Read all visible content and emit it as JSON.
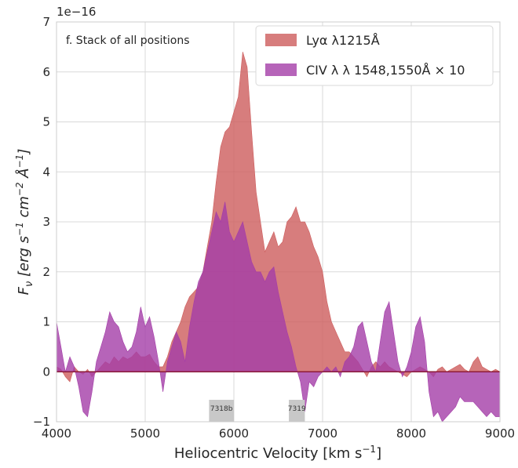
{
  "chart_data": {
    "type": "area",
    "title": "f. Stack of all positions",
    "xlabel": "Heliocentric Velocity [km s$^{-1}$]",
    "xlabel_text": "Heliocentric Velocity [km s",
    "xlabel_exp": "−1",
    "xlabel_close": "]",
    "ylabel_parts": [
      "F",
      "ν",
      " [erg s",
      "−1",
      " cm",
      "−2",
      " Å",
      "−1",
      "]"
    ],
    "offset_text": "1e−16",
    "xlim": [
      4000,
      9000
    ],
    "ylim": [
      -1,
      7
    ],
    "xticks": [
      "4000",
      "5000",
      "6000",
      "7000",
      "8000",
      "9000"
    ],
    "yticks": [
      "−1",
      "0",
      "1",
      "2",
      "3",
      "4",
      "5",
      "6",
      "7"
    ],
    "grid": true,
    "legend_position": "top-right",
    "series": [
      {
        "name": "Lyα λ1215Å",
        "color": "#cd5c5c",
        "x": [
          4000,
          4050,
          4100,
          4150,
          4200,
          4250,
          4300,
          4350,
          4400,
          4450,
          4500,
          4550,
          4600,
          4650,
          4700,
          4750,
          4800,
          4850,
          4900,
          4950,
          5000,
          5050,
          5100,
          5150,
          5200,
          5250,
          5300,
          5350,
          5400,
          5450,
          5500,
          5550,
          5600,
          5650,
          5700,
          5750,
          5800,
          5850,
          5900,
          5950,
          6000,
          6050,
          6100,
          6150,
          6200,
          6250,
          6300,
          6350,
          6400,
          6450,
          6500,
          6550,
          6600,
          6650,
          6700,
          6750,
          6800,
          6850,
          6900,
          6950,
          7000,
          7050,
          7100,
          7150,
          7200,
          7250,
          7300,
          7350,
          7400,
          7450,
          7500,
          7550,
          7600,
          7650,
          7700,
          7750,
          7800,
          7850,
          7900,
          7950,
          8000,
          8050,
          8100,
          8150,
          8200,
          8250,
          8300,
          8350,
          8400,
          8450,
          8500,
          8550,
          8600,
          8650,
          8700,
          8750,
          8800,
          8850,
          8900,
          8950,
          9000
        ],
        "y": [
          0.1,
          0.05,
          -0.1,
          -0.2,
          0.1,
          0.0,
          -0.05,
          0.05,
          -0.1,
          0.0,
          0.1,
          0.2,
          0.15,
          0.3,
          0.2,
          0.3,
          0.25,
          0.3,
          0.4,
          0.3,
          0.3,
          0.35,
          0.2,
          0.1,
          0.1,
          0.3,
          0.6,
          0.8,
          1.0,
          1.3,
          1.5,
          1.6,
          1.7,
          2.0,
          2.5,
          3.0,
          3.8,
          4.5,
          4.8,
          4.9,
          5.2,
          5.5,
          6.4,
          6.1,
          4.8,
          3.6,
          3.0,
          2.4,
          2.6,
          2.8,
          2.5,
          2.6,
          3.0,
          3.1,
          3.3,
          3.0,
          3.0,
          2.8,
          2.5,
          2.3,
          2.0,
          1.4,
          1.0,
          0.8,
          0.6,
          0.4,
          0.4,
          0.3,
          0.2,
          0.05,
          -0.1,
          0.1,
          0.2,
          0.1,
          0.2,
          0.1,
          0.05,
          0.0,
          -0.05,
          -0.1,
          0.0,
          0.05,
          0.1,
          0.05,
          0.0,
          -0.1,
          0.05,
          0.1,
          0.0,
          0.05,
          0.1,
          0.15,
          0.05,
          0.0,
          0.2,
          0.3,
          0.1,
          0.05,
          0.0,
          0.05,
          0.0
        ]
      },
      {
        "name": "CIV λ λ 1548,1550Å  × 10",
        "color": "#a43da8",
        "x": [
          4000,
          4050,
          4100,
          4150,
          4200,
          4250,
          4300,
          4350,
          4400,
          4450,
          4500,
          4550,
          4600,
          4650,
          4700,
          4750,
          4800,
          4850,
          4900,
          4950,
          5000,
          5050,
          5100,
          5150,
          5200,
          5250,
          5300,
          5350,
          5400,
          5450,
          5500,
          5550,
          5600,
          5650,
          5700,
          5750,
          5800,
          5850,
          5900,
          5950,
          6000,
          6050,
          6100,
          6150,
          6200,
          6250,
          6300,
          6350,
          6400,
          6450,
          6500,
          6550,
          6600,
          6650,
          6700,
          6750,
          6800,
          6850,
          6900,
          6950,
          7000,
          7050,
          7100,
          7150,
          7200,
          7250,
          7300,
          7350,
          7400,
          7450,
          7500,
          7550,
          7600,
          7650,
          7700,
          7750,
          7800,
          7850,
          7900,
          7950,
          8000,
          8050,
          8100,
          8150,
          8200,
          8250,
          8300,
          8350,
          8400,
          8450,
          8500,
          8550,
          8600,
          8650,
          8700,
          8750,
          8800,
          8850,
          8900,
          8950,
          9000
        ],
        "y": [
          1.0,
          0.5,
          0.0,
          0.3,
          0.1,
          -0.3,
          -0.8,
          -0.9,
          -0.4,
          0.2,
          0.5,
          0.8,
          1.2,
          1.0,
          0.9,
          0.6,
          0.4,
          0.5,
          0.8,
          1.3,
          0.9,
          1.1,
          0.7,
          0.2,
          -0.4,
          0.2,
          0.5,
          0.8,
          0.6,
          0.2,
          0.9,
          1.4,
          1.8,
          2.0,
          2.4,
          2.8,
          3.2,
          3.0,
          3.4,
          2.8,
          2.6,
          2.8,
          3.0,
          2.6,
          2.2,
          2.0,
          2.0,
          1.8,
          2.0,
          2.1,
          1.6,
          1.2,
          0.8,
          0.5,
          0.1,
          -0.2,
          -0.8,
          -0.2,
          -0.3,
          -0.1,
          0.0,
          0.1,
          0.0,
          0.1,
          -0.1,
          0.2,
          0.3,
          0.5,
          0.9,
          1.0,
          0.6,
          0.2,
          0.0,
          0.6,
          1.2,
          1.4,
          0.8,
          0.2,
          -0.1,
          0.1,
          0.4,
          0.9,
          1.1,
          0.6,
          -0.4,
          -0.9,
          -0.8,
          -1.0,
          -0.9,
          -0.8,
          -0.7,
          -0.5,
          -0.6,
          -0.6,
          -0.6,
          -0.7,
          -0.8,
          -0.9,
          -0.8,
          -0.9,
          -0.9
        ]
      }
    ],
    "markers": [
      {
        "label": "7318b",
        "x0": 5720,
        "x1": 6000
      },
      {
        "label": "7319",
        "x0": 6620,
        "x1": 6800
      }
    ]
  }
}
